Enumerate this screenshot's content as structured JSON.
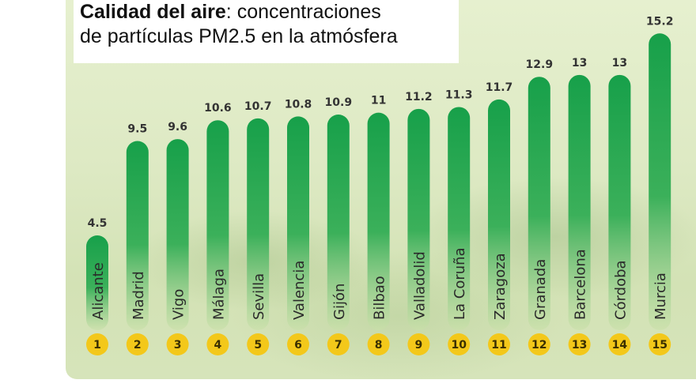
{
  "title": {
    "bold": "Calidad del aire",
    "rest": ": concentraciones",
    "line2": "de partículas PM2.5 en la atmósfera"
  },
  "chart_data": {
    "type": "bar",
    "categories": [
      "Alicante",
      "Madrid",
      "Vigo",
      "Málaga",
      "Sevilla",
      "Valencia",
      "Gijón",
      "Bilbao",
      "Valladolid",
      "La Coruña",
      "Zaragoza",
      "Granada",
      "Barcelona",
      "Córdoba",
      "Murcia"
    ],
    "values": [
      4.5,
      9.5,
      9.6,
      10.6,
      10.7,
      10.8,
      10.9,
      11,
      11.2,
      11.3,
      11.7,
      12.9,
      13,
      13,
      15.2
    ],
    "value_labels": [
      "4.5",
      "9.5",
      "9.6",
      "10.6",
      "10.7",
      "10.8",
      "10.9",
      "11",
      "11.2",
      "11.3",
      "11.7",
      "12.9",
      "13",
      "13",
      "15.2"
    ],
    "ranks": [
      "1",
      "2",
      "3",
      "4",
      "5",
      "6",
      "7",
      "8",
      "9",
      "10",
      "11",
      "12",
      "13",
      "14",
      "15"
    ],
    "colors": {
      "bar_top": "#17a04a",
      "bar_bottom": "#c9e0a8",
      "rank_circle": "#f3c81a",
      "value_label": "#333333",
      "category_label": "#2a2a2a"
    }
  }
}
